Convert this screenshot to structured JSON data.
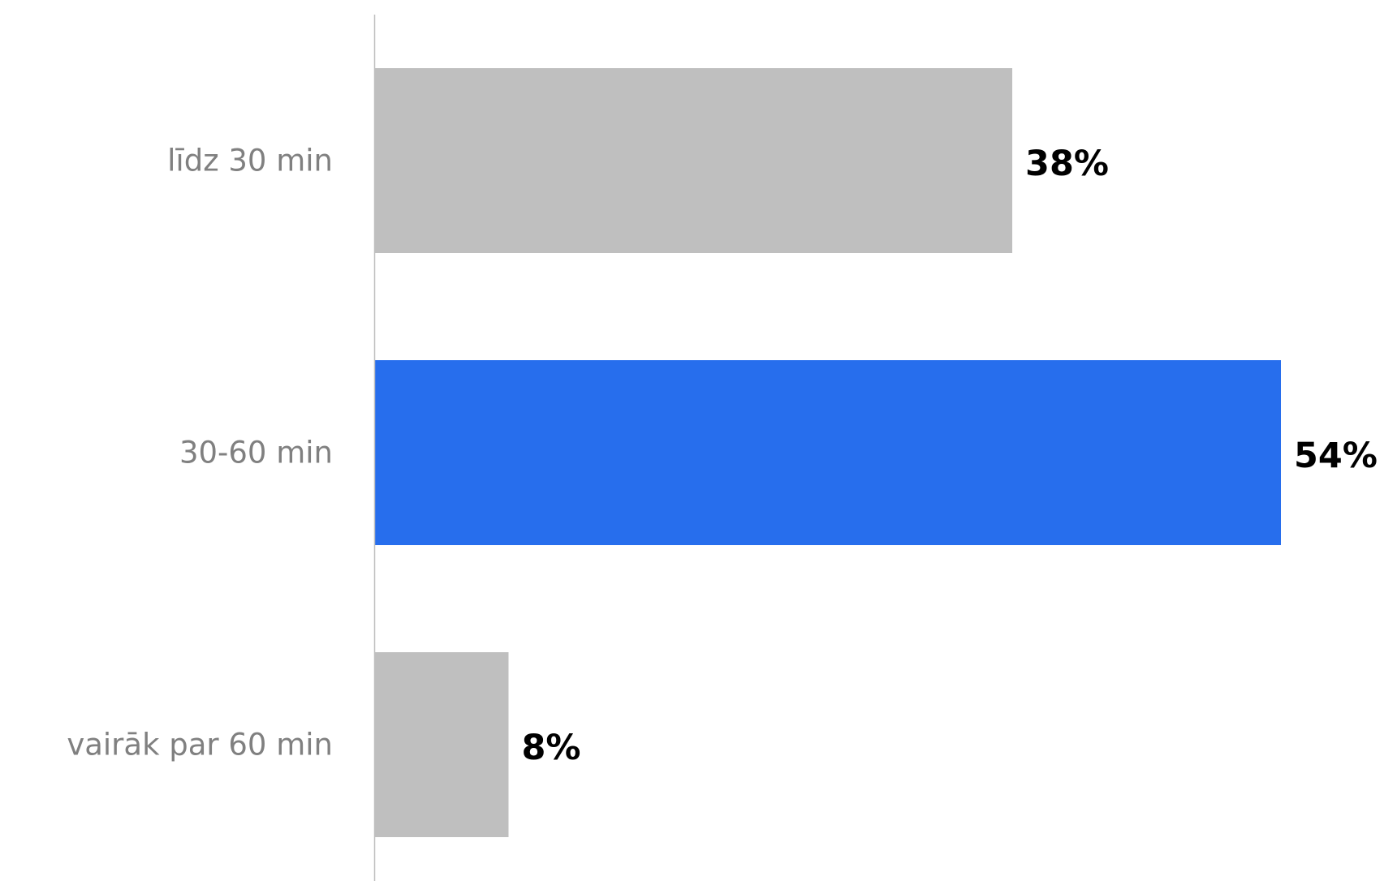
{
  "chart_data": {
    "type": "bar",
    "orientation": "horizontal",
    "categories": [
      "līdz 30 min",
      "30-60 min",
      "vairāk par 60 min"
    ],
    "values": [
      38,
      54,
      8
    ],
    "data_labels": [
      "38%",
      "54%",
      "8%"
    ],
    "unit": "%",
    "xlim": [
      0,
      54
    ],
    "grid": false,
    "legend": "none",
    "colors": {
      "default_bar": "#bfbfbf",
      "highlight_bar": "#276eed",
      "axis_line": "#bfbfbf",
      "category_text": "#808080",
      "value_text": "#000000"
    },
    "highlight_index": 1
  }
}
